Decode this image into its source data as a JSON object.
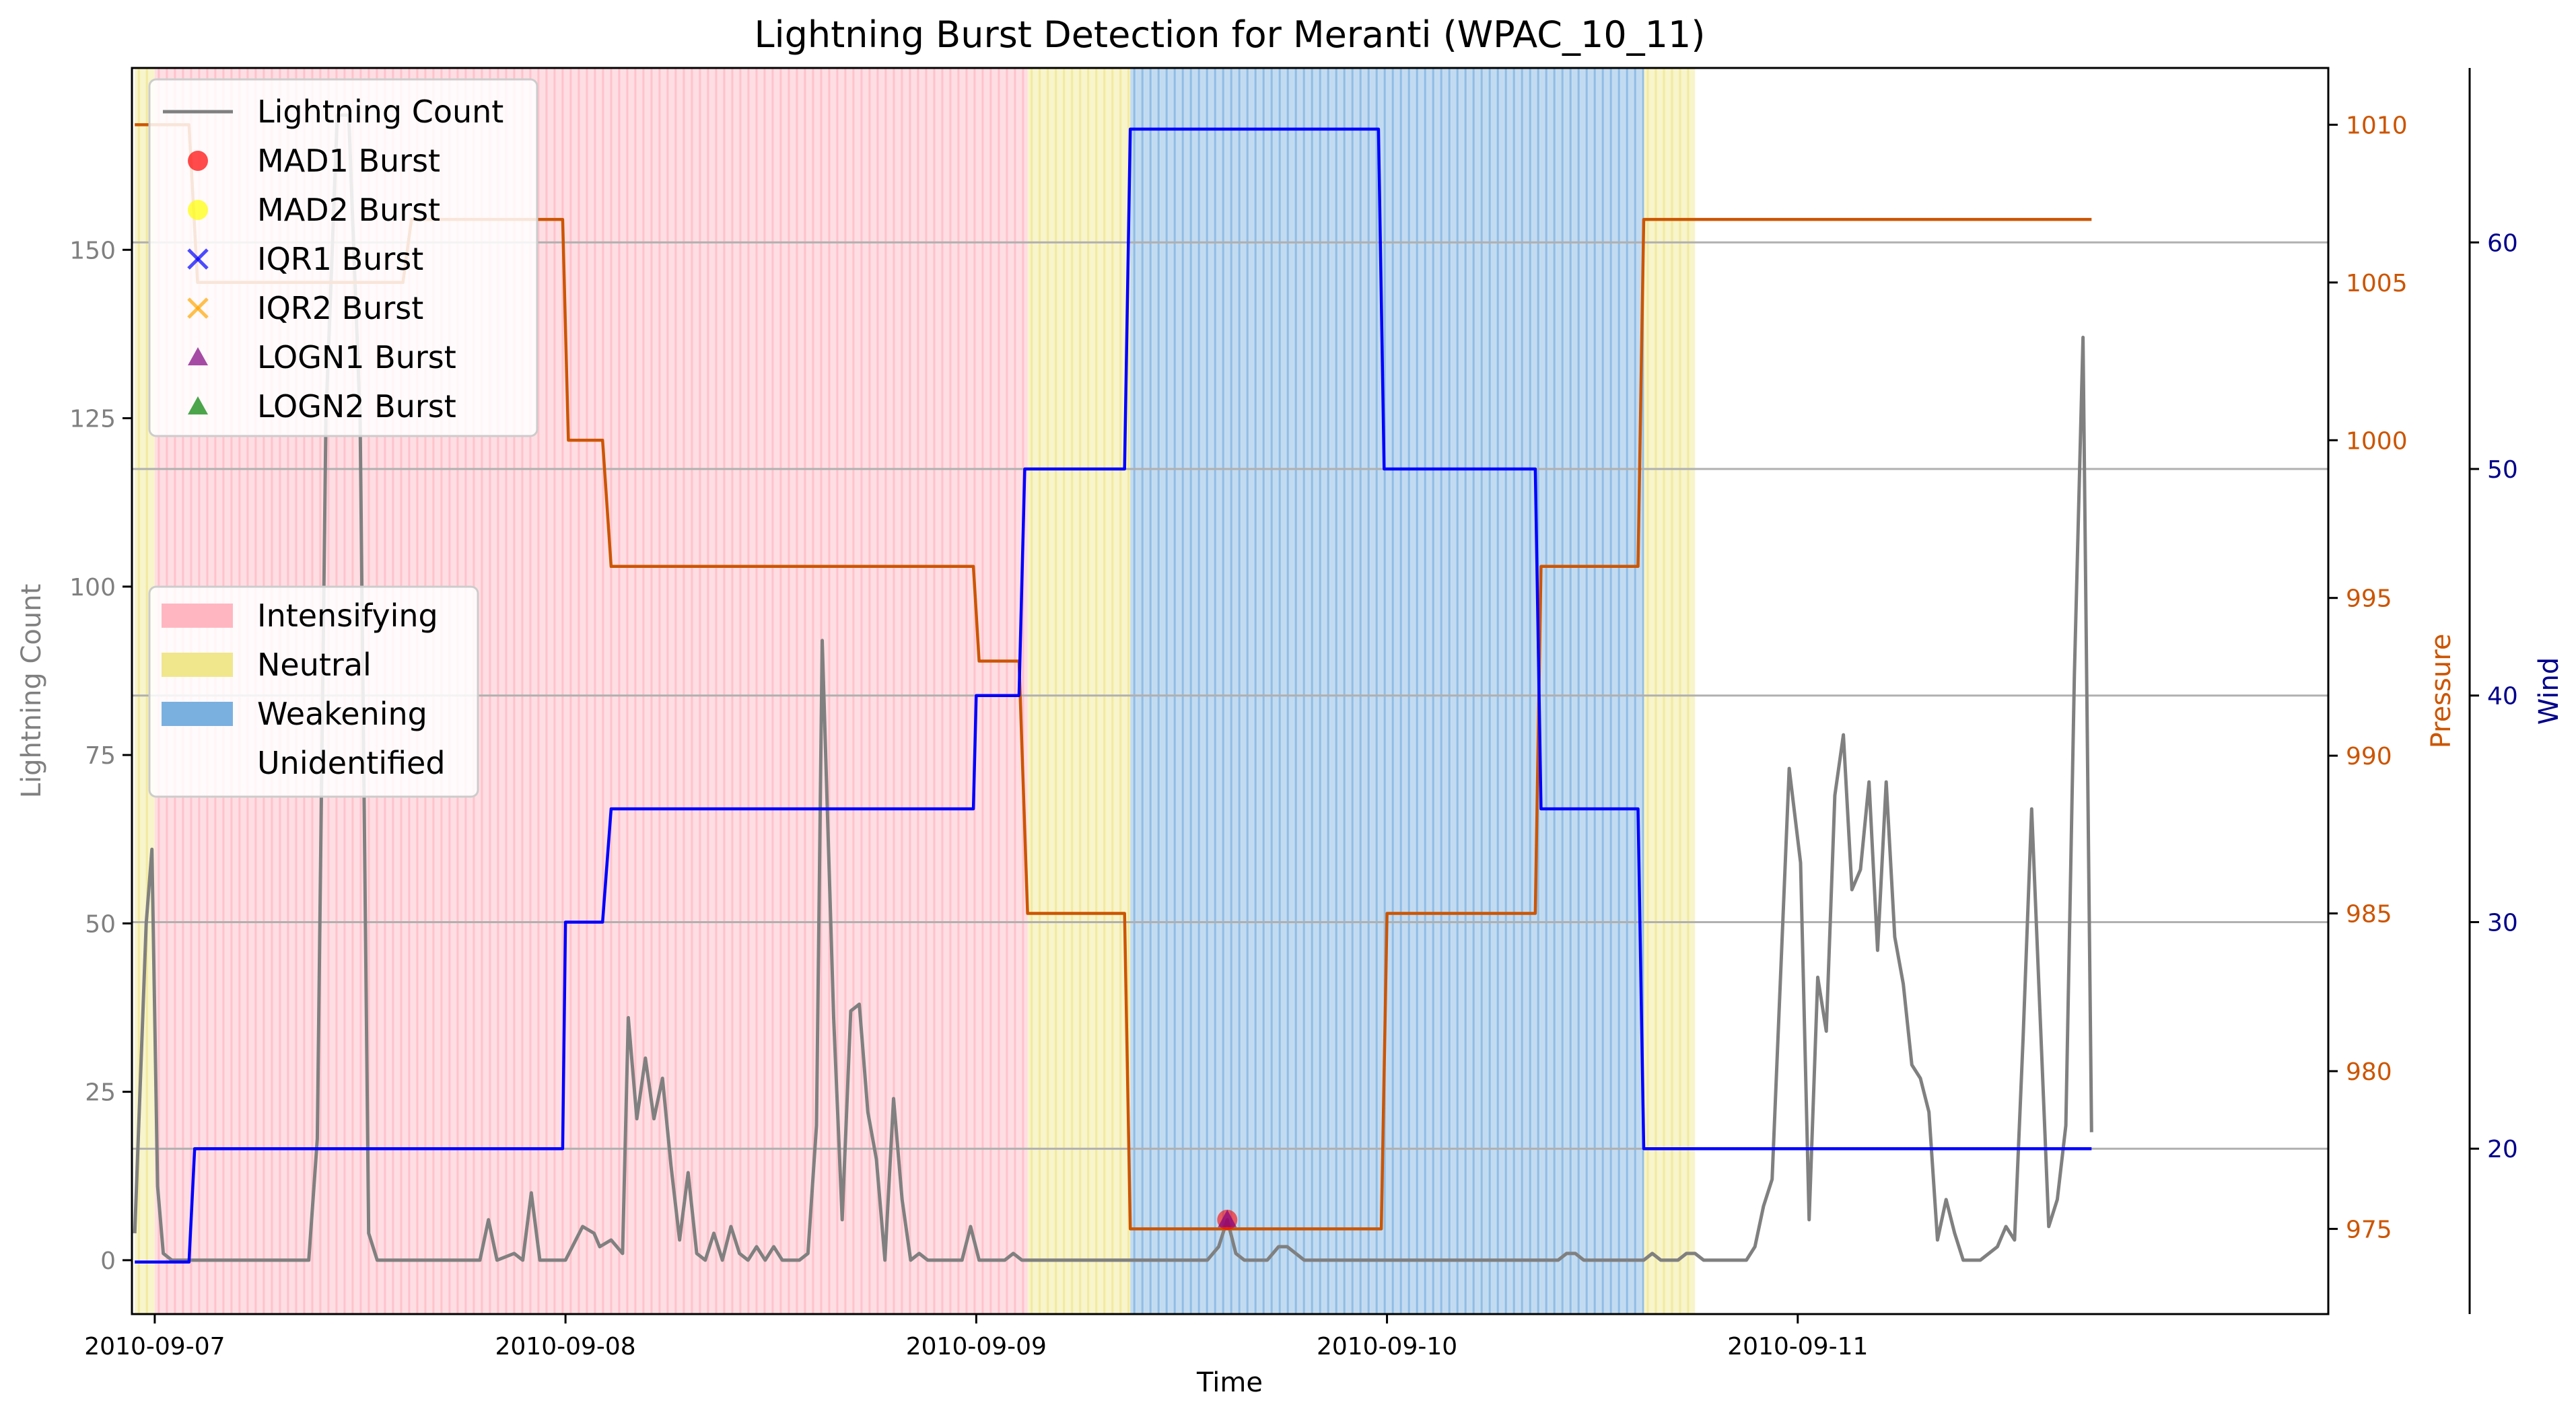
{
  "chart_data": {
    "type": "line",
    "title": "Lightning Burst Detection for Meranti (WPAC_10_11)",
    "xlabel": "Time",
    "ylabel_left": "Lightning Count",
    "ylabel_pressure": "Pressure",
    "ylabel_wind": "Wind",
    "x_range": [
      "2010-09-06 22:40",
      "2010-09-12 07:00"
    ],
    "xticks": [
      {
        "value": "2010-09-07 00:00",
        "label": "2010-09-07"
      },
      {
        "value": "2010-09-08 00:00",
        "label": "2010-09-08"
      },
      {
        "value": "2010-09-09 00:00",
        "label": "2010-09-09"
      },
      {
        "value": "2010-09-10 00:00",
        "label": "2010-09-10"
      },
      {
        "value": "2010-09-11 00:00",
        "label": "2010-09-11"
      }
    ],
    "ylim_count": [
      -8,
      177
    ],
    "yticks_count": [
      0,
      25,
      50,
      75,
      100,
      125,
      150
    ],
    "ylim_pressure": [
      972.3,
      1011.8
    ],
    "yticks_pressure": [
      975,
      980,
      985,
      990,
      995,
      1000,
      1005,
      1010
    ],
    "ylim_wind": [
      12.7,
      67.7
    ],
    "yticks_wind": [
      20,
      30,
      40,
      50,
      60
    ],
    "grid": "horizontal lines at wind axis ticks",
    "colors": {
      "lightning": "#808080",
      "pressure": "#cc5500",
      "wind": "#0000ff",
      "intensifying": "#ffb6c1",
      "neutral": "#f0e68c",
      "weakening": "#7ab0e0",
      "grid": "#b0b0b0",
      "pressure_axis": "#cc5500",
      "wind_axis": "#00008b",
      "count_axis": "#808080"
    },
    "stages": [
      {
        "stage": "Neutral",
        "start": "2010-09-06 22:50",
        "end": "2010-09-07 00:00"
      },
      {
        "stage": "Intensifying",
        "start": "2010-09-07 00:00",
        "end": "2010-09-09 03:00"
      },
      {
        "stage": "Neutral",
        "start": "2010-09-09 03:00",
        "end": "2010-09-09 09:00"
      },
      {
        "stage": "Weakening",
        "start": "2010-09-09 09:00",
        "end": "2010-09-10 15:00"
      },
      {
        "stage": "Neutral",
        "start": "2010-09-10 15:00",
        "end": "2010-09-10 18:00"
      }
    ],
    "series": [
      {
        "name": "Lightning Count",
        "axis": "count",
        "points": [
          [
            "2010-09-06 22:50",
            4
          ],
          [
            "2010-09-06 23:30",
            50
          ],
          [
            "2010-09-06 23:50",
            61
          ],
          [
            "2010-09-07 00:10",
            11
          ],
          [
            "2010-09-07 00:30",
            1
          ],
          [
            "2010-09-07 01:00",
            0
          ],
          [
            "2010-09-07 09:00",
            0
          ],
          [
            "2010-09-07 09:30",
            18
          ],
          [
            "2010-09-07 10:00",
            125
          ],
          [
            "2010-09-07 10:40",
            170
          ],
          [
            "2010-09-07 11:20",
            170
          ],
          [
            "2010-09-07 12:00",
            125
          ],
          [
            "2010-09-07 12:30",
            4
          ],
          [
            "2010-09-07 13:00",
            0
          ],
          [
            "2010-09-07 19:00",
            0
          ],
          [
            "2010-09-07 19:30",
            6
          ],
          [
            "2010-09-07 20:00",
            0
          ],
          [
            "2010-09-07 21:00",
            1
          ],
          [
            "2010-09-07 21:30",
            0
          ],
          [
            "2010-09-07 22:00",
            10
          ],
          [
            "2010-09-07 22:30",
            0
          ],
          [
            "2010-09-08 00:00",
            0
          ],
          [
            "2010-09-08 01:00",
            5
          ],
          [
            "2010-09-08 01:40",
            4
          ],
          [
            "2010-09-08 02:00",
            2
          ],
          [
            "2010-09-08 02:40",
            3
          ],
          [
            "2010-09-08 03:20",
            1
          ],
          [
            "2010-09-08 03:40",
            36
          ],
          [
            "2010-09-08 04:10",
            21
          ],
          [
            "2010-09-08 04:40",
            30
          ],
          [
            "2010-09-08 05:10",
            21
          ],
          [
            "2010-09-08 05:40",
            27
          ],
          [
            "2010-09-08 06:10",
            14
          ],
          [
            "2010-09-08 06:40",
            3
          ],
          [
            "2010-09-08 07:10",
            13
          ],
          [
            "2010-09-08 07:40",
            1
          ],
          [
            "2010-09-08 08:10",
            0
          ],
          [
            "2010-09-08 08:40",
            4
          ],
          [
            "2010-09-08 09:10",
            0
          ],
          [
            "2010-09-08 09:40",
            5
          ],
          [
            "2010-09-08 10:10",
            1
          ],
          [
            "2010-09-08 10:40",
            0
          ],
          [
            "2010-09-08 11:10",
            2
          ],
          [
            "2010-09-08 11:40",
            0
          ],
          [
            "2010-09-08 12:10",
            2
          ],
          [
            "2010-09-08 12:40",
            0
          ],
          [
            "2010-09-08 13:40",
            0
          ],
          [
            "2010-09-08 14:10",
            1
          ],
          [
            "2010-09-08 14:40",
            20
          ],
          [
            "2010-09-08 15:00",
            92
          ],
          [
            "2010-09-08 15:40",
            36
          ],
          [
            "2010-09-08 16:10",
            6
          ],
          [
            "2010-09-08 16:40",
            37
          ],
          [
            "2010-09-08 17:10",
            38
          ],
          [
            "2010-09-08 17:40",
            22
          ],
          [
            "2010-09-08 18:10",
            15
          ],
          [
            "2010-09-08 18:40",
            0
          ],
          [
            "2010-09-08 19:10",
            24
          ],
          [
            "2010-09-08 19:40",
            9
          ],
          [
            "2010-09-08 20:10",
            0
          ],
          [
            "2010-09-08 20:40",
            1
          ],
          [
            "2010-09-08 21:10",
            0
          ],
          [
            "2010-09-08 23:10",
            0
          ],
          [
            "2010-09-08 23:40",
            5
          ],
          [
            "2010-09-09 00:10",
            0
          ],
          [
            "2010-09-09 01:40",
            0
          ],
          [
            "2010-09-09 02:10",
            1
          ],
          [
            "2010-09-09 02:40",
            0
          ],
          [
            "2010-09-09 13:30",
            0
          ],
          [
            "2010-09-09 14:10",
            2
          ],
          [
            "2010-09-09 14:40",
            6
          ],
          [
            "2010-09-09 15:10",
            1
          ],
          [
            "2010-09-09 15:40",
            0
          ],
          [
            "2010-09-09 17:00",
            0
          ],
          [
            "2010-09-09 17:40",
            2
          ],
          [
            "2010-09-09 18:10",
            2
          ],
          [
            "2010-09-09 18:40",
            1
          ],
          [
            "2010-09-09 19:10",
            0
          ],
          [
            "2010-09-10 10:00",
            0
          ],
          [
            "2010-09-10 10:30",
            1
          ],
          [
            "2010-09-10 11:00",
            1
          ],
          [
            "2010-09-10 11:30",
            0
          ],
          [
            "2010-09-10 15:00",
            0
          ],
          [
            "2010-09-10 15:30",
            1
          ],
          [
            "2010-09-10 16:00",
            0
          ],
          [
            "2010-09-10 17:00",
            0
          ],
          [
            "2010-09-10 17:30",
            1
          ],
          [
            "2010-09-10 18:00",
            1
          ],
          [
            "2010-09-10 18:30",
            0
          ],
          [
            "2010-09-10 21:00",
            0
          ],
          [
            "2010-09-10 21:30",
            2
          ],
          [
            "2010-09-10 22:00",
            8
          ],
          [
            "2010-09-10 22:30",
            12
          ],
          [
            "2010-09-10 23:30",
            73
          ],
          [
            "2010-09-11 00:10",
            59
          ],
          [
            "2010-09-11 00:40",
            6
          ],
          [
            "2010-09-11 01:10",
            42
          ],
          [
            "2010-09-11 01:40",
            34
          ],
          [
            "2010-09-11 02:10",
            69
          ],
          [
            "2010-09-11 02:40",
            78
          ],
          [
            "2010-09-11 03:10",
            55
          ],
          [
            "2010-09-11 03:40",
            58
          ],
          [
            "2010-09-11 04:10",
            71
          ],
          [
            "2010-09-11 04:40",
            46
          ],
          [
            "2010-09-11 05:10",
            71
          ],
          [
            "2010-09-11 05:40",
            48
          ],
          [
            "2010-09-11 06:10",
            41
          ],
          [
            "2010-09-11 06:40",
            29
          ],
          [
            "2010-09-11 07:10",
            27
          ],
          [
            "2010-09-11 07:40",
            22
          ],
          [
            "2010-09-11 08:10",
            3
          ],
          [
            "2010-09-11 08:40",
            9
          ],
          [
            "2010-09-11 09:10",
            4
          ],
          [
            "2010-09-11 09:40",
            0
          ],
          [
            "2010-09-11 10:40",
            0
          ],
          [
            "2010-09-11 11:40",
            2
          ],
          [
            "2010-09-11 12:10",
            5
          ],
          [
            "2010-09-11 12:40",
            3
          ],
          [
            "2010-09-11 13:10",
            33
          ],
          [
            "2010-09-11 13:40",
            67
          ],
          [
            "2010-09-11 14:10",
            36
          ],
          [
            "2010-09-11 14:40",
            5
          ],
          [
            "2010-09-11 15:10",
            9
          ],
          [
            "2010-09-11 15:40",
            20
          ],
          [
            "2010-09-11 16:10",
            87
          ],
          [
            "2010-09-11 16:40",
            137
          ],
          [
            "2010-09-11 17:10",
            19
          ]
        ]
      },
      {
        "name": "Pressure",
        "axis": "pressure",
        "points": [
          [
            "2010-09-06 22:50",
            1010
          ],
          [
            "2010-09-07 02:00",
            1010
          ],
          [
            "2010-09-07 02:30",
            1005
          ],
          [
            "2010-09-07 14:30",
            1005
          ],
          [
            "2010-09-07 15:00",
            1007
          ],
          [
            "2010-09-07 23:50",
            1007
          ],
          [
            "2010-09-08 00:10",
            1000
          ],
          [
            "2010-09-08 02:10",
            1000
          ],
          [
            "2010-09-08 02:40",
            996
          ],
          [
            "2010-09-08 23:50",
            996
          ],
          [
            "2010-09-09 00:10",
            993
          ],
          [
            "2010-09-09 02:30",
            993
          ],
          [
            "2010-09-09 03:00",
            985
          ],
          [
            "2010-09-09 08:40",
            985
          ],
          [
            "2010-09-09 09:00",
            975
          ],
          [
            "2010-09-09 23:40",
            975
          ],
          [
            "2010-09-10 00:00",
            985
          ],
          [
            "2010-09-10 08:40",
            985
          ],
          [
            "2010-09-10 09:00",
            996
          ],
          [
            "2010-09-10 14:40",
            996
          ],
          [
            "2010-09-10 15:00",
            1007
          ],
          [
            "2010-09-11 17:10",
            1007
          ]
        ]
      },
      {
        "name": "Wind",
        "axis": "wind",
        "points": [
          [
            "2010-09-06 22:50",
            15
          ],
          [
            "2010-09-07 02:00",
            15
          ],
          [
            "2010-09-07 02:20",
            20
          ],
          [
            "2010-09-07 23:50",
            20
          ],
          [
            "2010-09-08 00:00",
            30
          ],
          [
            "2010-09-08 02:10",
            30
          ],
          [
            "2010-09-08 02:40",
            35
          ],
          [
            "2010-09-08 23:50",
            35
          ],
          [
            "2010-09-09 00:00",
            40
          ],
          [
            "2010-09-09 02:30",
            40
          ],
          [
            "2010-09-09 02:50",
            50
          ],
          [
            "2010-09-09 08:40",
            50
          ],
          [
            "2010-09-09 09:00",
            65
          ],
          [
            "2010-09-09 23:30",
            65
          ],
          [
            "2010-09-09 23:50",
            50
          ],
          [
            "2010-09-10 08:40",
            50
          ],
          [
            "2010-09-10 09:00",
            35
          ],
          [
            "2010-09-10 14:40",
            35
          ],
          [
            "2010-09-10 15:00",
            20
          ],
          [
            "2010-09-11 17:10",
            20
          ]
        ]
      }
    ],
    "burst_markers": [
      {
        "series": "MAD1 Burst",
        "time": "2010-09-09 14:40",
        "value": 6
      },
      {
        "series": "LOGN1 Burst",
        "time": "2010-09-09 14:40",
        "value": 6
      }
    ],
    "legend_lines": [
      {
        "label": "Lightning Count",
        "symbol": "line",
        "color": "#808080"
      },
      {
        "label": "MAD1 Burst",
        "symbol": "circle",
        "color": "#ff0000"
      },
      {
        "label": "MAD2 Burst",
        "symbol": "circle",
        "color": "#ffff00"
      },
      {
        "label": "IQR1 Burst",
        "symbol": "x",
        "color": "#0000ff"
      },
      {
        "label": "IQR2 Burst",
        "symbol": "x",
        "color": "#ffa500"
      },
      {
        "label": "LOGN1 Burst",
        "symbol": "triangle",
        "color": "#800080"
      },
      {
        "label": "LOGN2 Burst",
        "symbol": "triangle",
        "color": "#008000"
      }
    ],
    "legend_stages": [
      {
        "label": "Intensifying",
        "color": "#ffb6c1"
      },
      {
        "label": "Neutral",
        "color": "#f0e68c"
      },
      {
        "label": "Weakening",
        "color": "#7ab0e0"
      },
      {
        "label": "Unidentified",
        "color": "none"
      }
    ],
    "legend_placement": "upper-left and middle-left"
  }
}
